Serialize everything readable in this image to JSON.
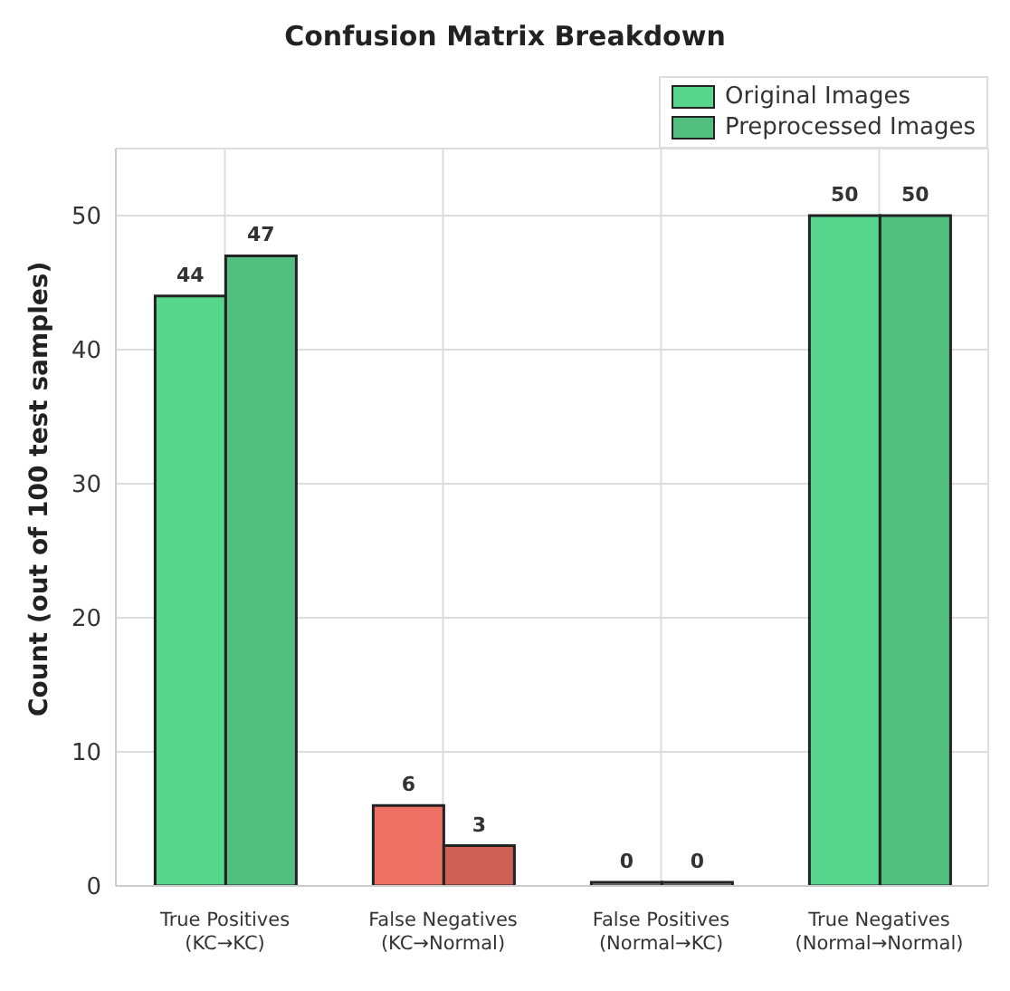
{
  "chart_data": {
    "type": "bar",
    "title": "Confusion Matrix Breakdown",
    "ylabel": "Count (out of 100 test samples)",
    "categories": [
      "True Positives\n(KC→KC)",
      "False Negatives\n(KC→Normal)",
      "False Positives\n(Normal→KC)",
      "True Negatives\n(Normal→Normal)"
    ],
    "series": [
      {
        "name": "Original Images",
        "color": "#58d68d",
        "colors": [
          "#58d68d",
          "#ec7063",
          "#95a5a6",
          "#58d68d"
        ],
        "values": [
          44,
          6,
          0,
          50
        ]
      },
      {
        "name": "Preprocessed Images",
        "color": "#52be80",
        "colors": [
          "#52be80",
          "#cd6155",
          "#95a5a6",
          "#52be80"
        ],
        "values": [
          47,
          3,
          0,
          50
        ]
      }
    ],
    "ylim": [
      0,
      55
    ],
    "yticks": [
      0,
      10,
      20,
      30,
      40,
      50
    ],
    "grid": true,
    "legend": "top right",
    "data_labels": true
  }
}
